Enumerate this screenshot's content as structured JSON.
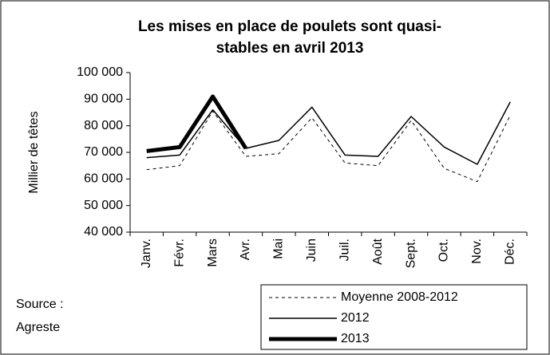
{
  "chart_data": {
    "type": "line",
    "title": [
      "Les mises en place de poulets sont quasi-",
      "stables en avril 2013"
    ],
    "y_label": "Millier de têtes",
    "source": [
      "Source :",
      "Agreste"
    ],
    "categories": [
      "Janv.",
      "Févr.",
      "Mars",
      "Avr.",
      "Mai",
      "Juin",
      "Juil.",
      "Août",
      "Sept.",
      "Oct.",
      "Nov.",
      "Déc."
    ],
    "series": [
      {
        "name": "Moyenne 2008-2012",
        "color": "#000000",
        "style": "dashed",
        "width": 1,
        "values": [
          63500,
          65000,
          85500,
          68500,
          69500,
          83000,
          66000,
          65000,
          82000,
          64000,
          59000,
          84000
        ]
      },
      {
        "name": "2012",
        "color": "#000000",
        "style": "solid",
        "width": 1.5,
        "values": [
          68000,
          69000,
          86000,
          71500,
          74500,
          87000,
          69000,
          68500,
          83500,
          72000,
          65500,
          89000
        ]
      },
      {
        "name": "2013",
        "color": "#000000",
        "style": "solid",
        "width": 5,
        "values": [
          70500,
          72000,
          91000,
          71500,
          null,
          null,
          null,
          null,
          null,
          null,
          null,
          null
        ]
      }
    ],
    "ylim": [
      40000,
      100000
    ],
    "yticks": [
      {
        "value": 40000,
        "label": "40 000"
      },
      {
        "value": 50000,
        "label": "50 000"
      },
      {
        "value": 60000,
        "label": "60 000"
      },
      {
        "value": 70000,
        "label": "70 000"
      },
      {
        "value": 80000,
        "label": "80 000"
      },
      {
        "value": 90000,
        "label": "90 000"
      },
      {
        "value": 100000,
        "label": "100 000"
      }
    ]
  }
}
